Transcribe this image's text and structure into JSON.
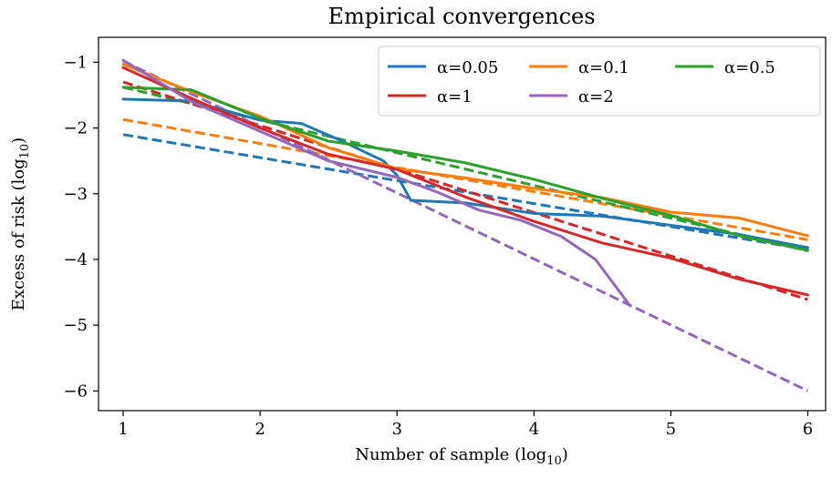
{
  "chart_data": {
    "type": "line",
    "title": "Empirical convergences",
    "xlabel": "Number of sample",
    "xlabel_suffix": "(log",
    "xlabel_sub": "10",
    "xlabel_close": ")",
    "ylabel": "Excess of risk",
    "ylabel_suffix": "(log",
    "ylabel_sub": "10",
    "ylabel_close": ")",
    "xlim": [
      0.82,
      6.13
    ],
    "ylim": [
      -6.3,
      -0.62
    ],
    "xticks": [
      1,
      2,
      3,
      4,
      5,
      6
    ],
    "yticks": [
      -1,
      -2,
      -3,
      -4,
      -5,
      -6
    ],
    "xtick_labels": [
      "1",
      "2",
      "3",
      "4",
      "5",
      "6"
    ],
    "ytick_labels": [
      "−1",
      "−2",
      "−3",
      "−4",
      "−5",
      "−6"
    ],
    "grid": false,
    "legend_position": "top-right",
    "legend_columns": 3,
    "series": [
      {
        "name": "α=0.05",
        "color": "#1f77b4",
        "x": [
          1.0,
          1.5,
          2.0,
          2.3,
          2.6,
          2.9,
          3.0,
          3.1,
          3.5,
          4.0,
          4.5,
          5.0,
          5.5,
          6.0
        ],
        "y": [
          -1.56,
          -1.59,
          -1.88,
          -1.93,
          -2.2,
          -2.5,
          -2.72,
          -3.1,
          -3.14,
          -3.3,
          -3.34,
          -3.48,
          -3.62,
          -3.82
        ],
        "fit_x": [
          1.0,
          6.0
        ],
        "fit_y": [
          -2.1,
          -3.85
        ]
      },
      {
        "name": "α=0.1",
        "color": "#ff7f0e",
        "x": [
          1.0,
          1.5,
          2.0,
          2.5,
          3.0,
          3.5,
          4.0,
          4.5,
          5.0,
          5.5,
          6.0
        ],
        "y": [
          -1.03,
          -1.45,
          -1.82,
          -2.3,
          -2.62,
          -2.76,
          -2.92,
          -3.06,
          -3.28,
          -3.37,
          -3.64
        ],
        "fit_x": [
          1.0,
          6.0
        ],
        "fit_y": [
          -1.87,
          -3.7
        ]
      },
      {
        "name": "α=0.5",
        "color": "#2ca02c",
        "x": [
          1.0,
          1.5,
          2.0,
          2.5,
          3.0,
          3.5,
          4.0,
          4.5,
          5.0,
          5.5,
          6.0
        ],
        "y": [
          -1.38,
          -1.42,
          -1.85,
          -2.2,
          -2.35,
          -2.53,
          -2.78,
          -3.07,
          -3.33,
          -3.64,
          -3.86
        ],
        "fit_x": [
          1.0,
          6.0
        ],
        "fit_y": [
          -1.38,
          -3.87
        ]
      },
      {
        "name": "α=1",
        "color": "#d62728",
        "x": [
          1.0,
          1.5,
          2.0,
          2.5,
          3.0,
          3.5,
          4.0,
          4.5,
          5.0,
          5.5,
          6.0
        ],
        "y": [
          -1.08,
          -1.55,
          -2.0,
          -2.4,
          -2.63,
          -3.05,
          -3.42,
          -3.75,
          -3.98,
          -4.3,
          -4.54
        ],
        "fit_x": [
          1.0,
          6.0
        ],
        "fit_y": [
          -1.3,
          -4.61
        ]
      },
      {
        "name": "α=2",
        "color": "#9467bd",
        "x": [
          1.0,
          1.5,
          2.0,
          2.5,
          3.0,
          3.3,
          3.6,
          3.9,
          4.2,
          4.45,
          4.7
        ],
        "y": [
          -0.97,
          -1.6,
          -2.05,
          -2.5,
          -2.75,
          -2.98,
          -3.25,
          -3.4,
          -3.65,
          -4.0,
          -4.7
        ],
        "fit_x": [
          1.0,
          6.0
        ],
        "fit_y": [
          -0.98,
          -6.0
        ]
      }
    ]
  }
}
